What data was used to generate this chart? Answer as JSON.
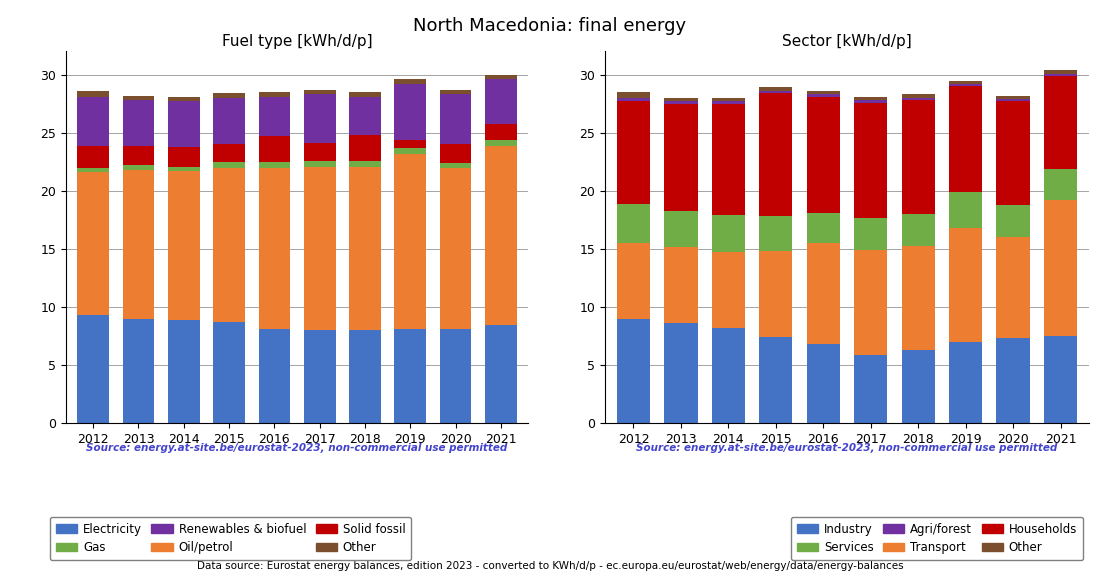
{
  "title": "North Macedonia: final energy",
  "years": [
    2012,
    2013,
    2014,
    2015,
    2016,
    2017,
    2018,
    2019,
    2020,
    2021
  ],
  "fuel_title": "Fuel type [kWh/d/p]",
  "fuel_electricity": [
    9.3,
    9.0,
    8.9,
    8.7,
    8.1,
    8.0,
    8.0,
    8.1,
    8.1,
    8.5
  ],
  "fuel_oil": [
    12.3,
    12.8,
    12.8,
    13.3,
    13.9,
    14.1,
    14.1,
    15.1,
    13.9,
    15.4
  ],
  "fuel_gas": [
    0.4,
    0.4,
    0.4,
    0.5,
    0.5,
    0.5,
    0.5,
    0.5,
    0.4,
    0.5
  ],
  "fuel_solid": [
    1.9,
    1.7,
    1.7,
    1.5,
    2.2,
    1.5,
    2.2,
    0.7,
    1.6,
    1.4
  ],
  "fuel_renewables": [
    4.2,
    3.9,
    3.9,
    4.0,
    3.4,
    4.2,
    3.3,
    4.8,
    4.3,
    3.8
  ],
  "fuel_other": [
    0.5,
    0.4,
    0.4,
    0.4,
    0.4,
    0.4,
    0.4,
    0.4,
    0.4,
    0.4
  ],
  "sector_title": "Sector [kWh/d/p]",
  "sector_industry": [
    9.0,
    8.6,
    8.2,
    7.4,
    6.8,
    5.9,
    6.3,
    7.0,
    7.3,
    7.5
  ],
  "sector_transport": [
    6.5,
    6.6,
    6.5,
    7.4,
    8.7,
    9.0,
    9.0,
    9.8,
    8.7,
    11.7
  ],
  "sector_services": [
    3.4,
    3.1,
    3.2,
    3.0,
    2.6,
    2.8,
    2.7,
    3.1,
    2.8,
    2.7
  ],
  "sector_households": [
    8.8,
    9.2,
    9.6,
    10.6,
    10.0,
    9.9,
    9.8,
    9.1,
    8.9,
    8.0
  ],
  "sector_agriforest": [
    0.3,
    0.2,
    0.2,
    0.2,
    0.2,
    0.2,
    0.2,
    0.2,
    0.2,
    0.2
  ],
  "sector_other": [
    0.5,
    0.3,
    0.3,
    0.3,
    0.3,
    0.3,
    0.3,
    0.3,
    0.3,
    0.3
  ],
  "color_electricity": "#4472c4",
  "color_oil": "#ed7d31",
  "color_gas": "#70ad47",
  "color_solid": "#c00000",
  "color_renewables": "#7030a0",
  "color_other_fuel": "#7b4f2e",
  "color_industry": "#4472c4",
  "color_transport": "#ed7d31",
  "color_services": "#70ad47",
  "color_households": "#c00000",
  "color_agriforest": "#7030a0",
  "color_other_sector": "#7b4f2e",
  "source_text": "Source: energy.at-site.be/eurostat-2023, non-commercial use permitted",
  "footer_text": "Data source: Eurostat energy balances, edition 2023 - converted to KWh/d/p - ec.europa.eu/eurostat/web/energy/data/energy-balances",
  "ylim": [
    0,
    32
  ],
  "yticks": [
    0,
    5,
    10,
    15,
    20,
    25,
    30
  ]
}
